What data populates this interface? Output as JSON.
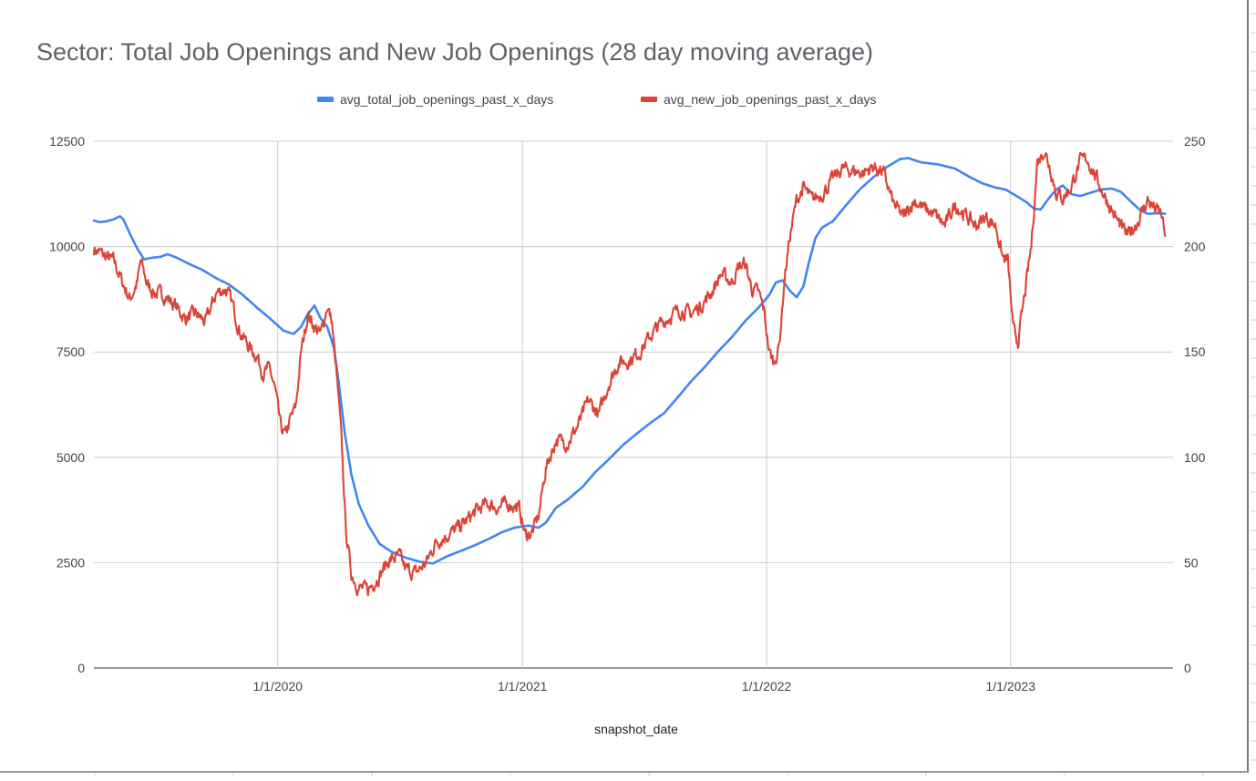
{
  "chart_data": {
    "type": "line",
    "title": "Sector: Total Job Openings and New Job Openings (28 day moving average)",
    "xlabel": "snapshot_date",
    "x_ticks": [
      "1/1/2020",
      "1/1/2021",
      "1/1/2022",
      "1/1/2023"
    ],
    "x_range": [
      "2019-04-01",
      "2023-09-01"
    ],
    "y_left": {
      "range": [
        0,
        12500
      ],
      "ticks": [
        "0",
        "2500",
        "5000",
        "7500",
        "10000",
        "12500"
      ]
    },
    "y_right": {
      "range": [
        0,
        250
      ],
      "ticks": [
        "0",
        "50",
        "100",
        "150",
        "200",
        "250"
      ]
    },
    "legend_position": "top",
    "grid": true,
    "series": [
      {
        "name": "avg_total_job_openings_past_x_days",
        "axis": "left",
        "color": "#4285f4",
        "points": [
          [
            "2019-04-01",
            10620
          ],
          [
            "2019-04-10",
            10580
          ],
          [
            "2019-04-20",
            10600
          ],
          [
            "2019-05-01",
            10650
          ],
          [
            "2019-05-10",
            10720
          ],
          [
            "2019-05-15",
            10650
          ],
          [
            "2019-05-25",
            10300
          ],
          [
            "2019-06-05",
            9950
          ],
          [
            "2019-06-15",
            9700
          ],
          [
            "2019-06-25",
            9730
          ],
          [
            "2019-07-10",
            9760
          ],
          [
            "2019-07-20",
            9820
          ],
          [
            "2019-08-01",
            9750
          ],
          [
            "2019-08-20",
            9600
          ],
          [
            "2019-09-10",
            9450
          ],
          [
            "2019-10-01",
            9250
          ],
          [
            "2019-10-20",
            9100
          ],
          [
            "2019-11-10",
            8850
          ],
          [
            "2019-12-01",
            8550
          ],
          [
            "2019-12-20",
            8300
          ],
          [
            "2020-01-10",
            8000
          ],
          [
            "2020-01-25",
            7930
          ],
          [
            "2020-02-05",
            8100
          ],
          [
            "2020-02-15",
            8400
          ],
          [
            "2020-02-25",
            8600
          ],
          [
            "2020-03-05",
            8300
          ],
          [
            "2020-03-15",
            8100
          ],
          [
            "2020-03-25",
            7600
          ],
          [
            "2020-04-01",
            6800
          ],
          [
            "2020-04-10",
            5600
          ],
          [
            "2020-04-20",
            4600
          ],
          [
            "2020-05-01",
            3900
          ],
          [
            "2020-05-15",
            3400
          ],
          [
            "2020-06-01",
            2950
          ],
          [
            "2020-06-20",
            2750
          ],
          [
            "2020-07-10",
            2620
          ],
          [
            "2020-08-01",
            2520
          ],
          [
            "2020-08-20",
            2480
          ],
          [
            "2020-09-10",
            2650
          ],
          [
            "2020-10-01",
            2780
          ],
          [
            "2020-10-20",
            2900
          ],
          [
            "2020-11-10",
            3050
          ],
          [
            "2020-12-01",
            3220
          ],
          [
            "2020-12-20",
            3330
          ],
          [
            "2021-01-10",
            3380
          ],
          [
            "2021-01-25",
            3330
          ],
          [
            "2021-02-05",
            3450
          ],
          [
            "2021-02-20",
            3800
          ],
          [
            "2021-03-10",
            4000
          ],
          [
            "2021-04-01",
            4300
          ],
          [
            "2021-04-20",
            4650
          ],
          [
            "2021-05-10",
            4950
          ],
          [
            "2021-06-01",
            5300
          ],
          [
            "2021-06-20",
            5550
          ],
          [
            "2021-07-10",
            5800
          ],
          [
            "2021-08-01",
            6050
          ],
          [
            "2021-08-20",
            6400
          ],
          [
            "2021-09-10",
            6800
          ],
          [
            "2021-10-01",
            7150
          ],
          [
            "2021-10-20",
            7500
          ],
          [
            "2021-11-10",
            7850
          ],
          [
            "2021-12-01",
            8250
          ],
          [
            "2021-12-20",
            8550
          ],
          [
            "2022-01-05",
            8850
          ],
          [
            "2022-01-15",
            9150
          ],
          [
            "2022-01-25",
            9200
          ],
          [
            "2022-02-05",
            8950
          ],
          [
            "2022-02-15",
            8800
          ],
          [
            "2022-02-25",
            9050
          ],
          [
            "2022-03-05",
            9600
          ],
          [
            "2022-03-15",
            10200
          ],
          [
            "2022-03-25",
            10450
          ],
          [
            "2022-04-10",
            10600
          ],
          [
            "2022-05-01",
            11000
          ],
          [
            "2022-05-20",
            11350
          ],
          [
            "2022-06-10",
            11650
          ],
          [
            "2022-07-01",
            11900
          ],
          [
            "2022-07-20",
            12080
          ],
          [
            "2022-08-01",
            12100
          ],
          [
            "2022-08-20",
            12000
          ],
          [
            "2022-09-15",
            11950
          ],
          [
            "2022-10-10",
            11850
          ],
          [
            "2022-11-01",
            11650
          ],
          [
            "2022-11-20",
            11500
          ],
          [
            "2022-12-10",
            11400
          ],
          [
            "2022-12-25",
            11350
          ],
          [
            "2023-01-10",
            11200
          ],
          [
            "2023-01-25",
            11050
          ],
          [
            "2023-02-05",
            10900
          ],
          [
            "2023-02-15",
            10880
          ],
          [
            "2023-02-25",
            11100
          ],
          [
            "2023-03-10",
            11350
          ],
          [
            "2023-03-20",
            11450
          ],
          [
            "2023-04-01",
            11250
          ],
          [
            "2023-04-15",
            11200
          ],
          [
            "2023-05-01",
            11280
          ],
          [
            "2023-05-15",
            11350
          ],
          [
            "2023-06-01",
            11380
          ],
          [
            "2023-06-15",
            11300
          ],
          [
            "2023-07-01",
            11050
          ],
          [
            "2023-07-15",
            10850
          ],
          [
            "2023-07-25",
            10780
          ],
          [
            "2023-08-10",
            10790
          ],
          [
            "2023-08-20",
            10780
          ]
        ]
      },
      {
        "name": "avg_new_job_openings_past_x_days",
        "axis": "right",
        "color": "#db4437",
        "points": [
          [
            "2019-04-01",
            199
          ],
          [
            "2019-04-15",
            196
          ],
          [
            "2019-05-01",
            193
          ],
          [
            "2019-05-15",
            182
          ],
          [
            "2019-05-25",
            175
          ],
          [
            "2019-06-05",
            183
          ],
          [
            "2019-06-10",
            193
          ],
          [
            "2019-06-20",
            182
          ],
          [
            "2019-07-01",
            178
          ],
          [
            "2019-07-15",
            177
          ],
          [
            "2019-08-01",
            172
          ],
          [
            "2019-08-15",
            166
          ],
          [
            "2019-09-01",
            168
          ],
          [
            "2019-09-15",
            164
          ],
          [
            "2019-10-01",
            178
          ],
          [
            "2019-10-15",
            180
          ],
          [
            "2019-10-25",
            173
          ],
          [
            "2019-11-05",
            160
          ],
          [
            "2019-11-20",
            152
          ],
          [
            "2019-12-01",
            148
          ],
          [
            "2019-12-10",
            140
          ],
          [
            "2019-12-20",
            142
          ],
          [
            "2019-12-28",
            132
          ],
          [
            "2020-01-05",
            115
          ],
          [
            "2020-01-12",
            110
          ],
          [
            "2020-01-20",
            118
          ],
          [
            "2020-01-28",
            124
          ],
          [
            "2020-02-05",
            150
          ],
          [
            "2020-02-15",
            168
          ],
          [
            "2020-02-25",
            162
          ],
          [
            "2020-03-05",
            158
          ],
          [
            "2020-03-15",
            172
          ],
          [
            "2020-03-22",
            164
          ],
          [
            "2020-03-30",
            135
          ],
          [
            "2020-04-05",
            110
          ],
          [
            "2020-04-12",
            65
          ],
          [
            "2020-04-20",
            45
          ],
          [
            "2020-05-01",
            38
          ],
          [
            "2020-05-15",
            37
          ],
          [
            "2020-06-01",
            44
          ],
          [
            "2020-06-15",
            51
          ],
          [
            "2020-07-01",
            53
          ],
          [
            "2020-07-10",
            47
          ],
          [
            "2020-07-25",
            45
          ],
          [
            "2020-08-10",
            50
          ],
          [
            "2020-08-25",
            60
          ],
          [
            "2020-09-10",
            63
          ],
          [
            "2020-09-25",
            66
          ],
          [
            "2020-10-10",
            70
          ],
          [
            "2020-10-25",
            75
          ],
          [
            "2020-11-10",
            78
          ],
          [
            "2020-11-25",
            76
          ],
          [
            "2020-12-10",
            78
          ],
          [
            "2020-12-20",
            77
          ],
          [
            "2020-12-28",
            75
          ],
          [
            "2021-01-05",
            63
          ],
          [
            "2021-01-15",
            64
          ],
          [
            "2021-01-25",
            72
          ],
          [
            "2021-02-05",
            95
          ],
          [
            "2021-02-20",
            108
          ],
          [
            "2021-03-10",
            107
          ],
          [
            "2021-03-25",
            115
          ],
          [
            "2021-04-10",
            127
          ],
          [
            "2021-04-25",
            120
          ],
          [
            "2021-05-10",
            135
          ],
          [
            "2021-05-25",
            145
          ],
          [
            "2021-06-10",
            146
          ],
          [
            "2021-06-25",
            150
          ],
          [
            "2021-07-10",
            157
          ],
          [
            "2021-07-25",
            163
          ],
          [
            "2021-08-10",
            167
          ],
          [
            "2021-08-25",
            170
          ],
          [
            "2021-09-10",
            168
          ],
          [
            "2021-09-25",
            172
          ],
          [
            "2021-10-10",
            178
          ],
          [
            "2021-10-25",
            187
          ],
          [
            "2021-11-10",
            183
          ],
          [
            "2021-11-20",
            190
          ],
          [
            "2021-11-30",
            192
          ],
          [
            "2021-12-10",
            180
          ],
          [
            "2021-12-20",
            178
          ],
          [
            "2021-12-28",
            170
          ],
          [
            "2022-01-05",
            150
          ],
          [
            "2022-01-12",
            145
          ],
          [
            "2022-01-20",
            153
          ],
          [
            "2022-01-28",
            185
          ],
          [
            "2022-02-05",
            205
          ],
          [
            "2022-02-15",
            222
          ],
          [
            "2022-02-25",
            228
          ],
          [
            "2022-03-10",
            222
          ],
          [
            "2022-03-25",
            225
          ],
          [
            "2022-04-10",
            232
          ],
          [
            "2022-04-25",
            237
          ],
          [
            "2022-05-10",
            236
          ],
          [
            "2022-05-25",
            235
          ],
          [
            "2022-06-10",
            238
          ],
          [
            "2022-06-25",
            235
          ],
          [
            "2022-07-10",
            220
          ],
          [
            "2022-07-25",
            214
          ],
          [
            "2022-08-10",
            222
          ],
          [
            "2022-08-25",
            218
          ],
          [
            "2022-09-10",
            215
          ],
          [
            "2022-09-25",
            210
          ],
          [
            "2022-10-10",
            220
          ],
          [
            "2022-10-25",
            215
          ],
          [
            "2022-11-10",
            210
          ],
          [
            "2022-11-25",
            214
          ],
          [
            "2022-12-10",
            210
          ],
          [
            "2022-12-20",
            195
          ],
          [
            "2022-12-28",
            193
          ],
          [
            "2023-01-05",
            160
          ],
          [
            "2023-01-12",
            155
          ],
          [
            "2023-01-20",
            172
          ],
          [
            "2023-02-01",
            200
          ],
          [
            "2023-02-10",
            240
          ],
          [
            "2023-02-20",
            246
          ],
          [
            "2023-03-01",
            238
          ],
          [
            "2023-03-10",
            226
          ],
          [
            "2023-03-20",
            223
          ],
          [
            "2023-04-01",
            228
          ],
          [
            "2023-04-15",
            240
          ],
          [
            "2023-04-25",
            242
          ],
          [
            "2023-05-10",
            232
          ],
          [
            "2023-05-25",
            222
          ],
          [
            "2023-06-10",
            212
          ],
          [
            "2023-06-25",
            205
          ],
          [
            "2023-07-10",
            212
          ],
          [
            "2023-07-25",
            222
          ],
          [
            "2023-08-05",
            218
          ],
          [
            "2023-08-15",
            215
          ],
          [
            "2023-08-20",
            205
          ]
        ]
      }
    ]
  }
}
